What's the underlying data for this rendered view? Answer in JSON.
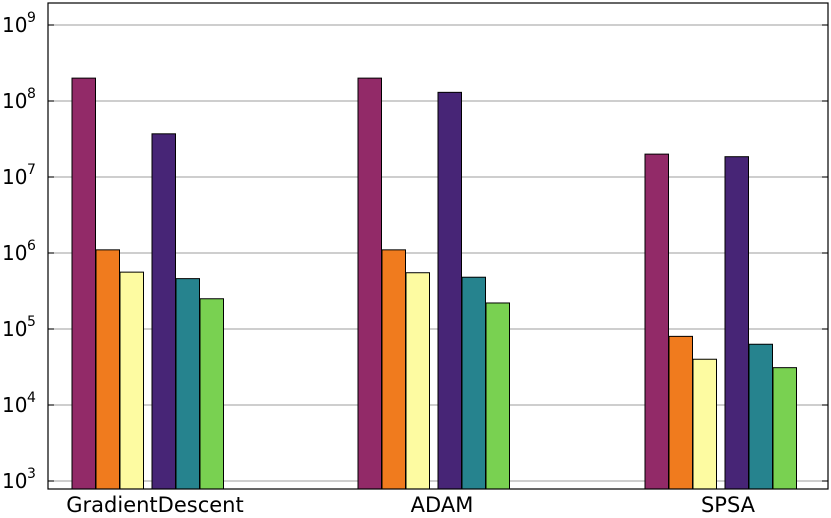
{
  "chart_data": {
    "type": "bar",
    "categories": [
      "GradientDescent",
      "ADAM",
      "SPSA"
    ],
    "y_scale": "log",
    "ylim": [
      1000,
      1000000000
    ],
    "grid": true,
    "y_ticks": [
      {
        "value": 1000,
        "base": "10",
        "exp": "3"
      },
      {
        "value": 10000,
        "base": "10",
        "exp": "4"
      },
      {
        "value": 100000,
        "base": "10",
        "exp": "5"
      },
      {
        "value": 1000000,
        "base": "10",
        "exp": "6"
      },
      {
        "value": 10000000,
        "base": "10",
        "exp": "7"
      },
      {
        "value": 100000000,
        "base": "10",
        "exp": "8"
      },
      {
        "value": 1000000000,
        "base": "10",
        "exp": "9"
      }
    ],
    "series": [
      {
        "color": "#922a68",
        "values": [
          200000000,
          200000000,
          20000000
        ]
      },
      {
        "color": "#f07b1e",
        "values": [
          1100000,
          1100000,
          80000
        ]
      },
      {
        "color": "#fdfba1",
        "values": [
          560000,
          550000,
          40000
        ]
      },
      {
        "color": "#472576",
        "values": [
          37000000,
          130000000,
          18500000
        ]
      },
      {
        "color": "#26838e",
        "values": [
          460000,
          480000,
          63000
        ]
      },
      {
        "color": "#79d151",
        "values": [
          250000,
          220000,
          31000
        ]
      }
    ]
  }
}
